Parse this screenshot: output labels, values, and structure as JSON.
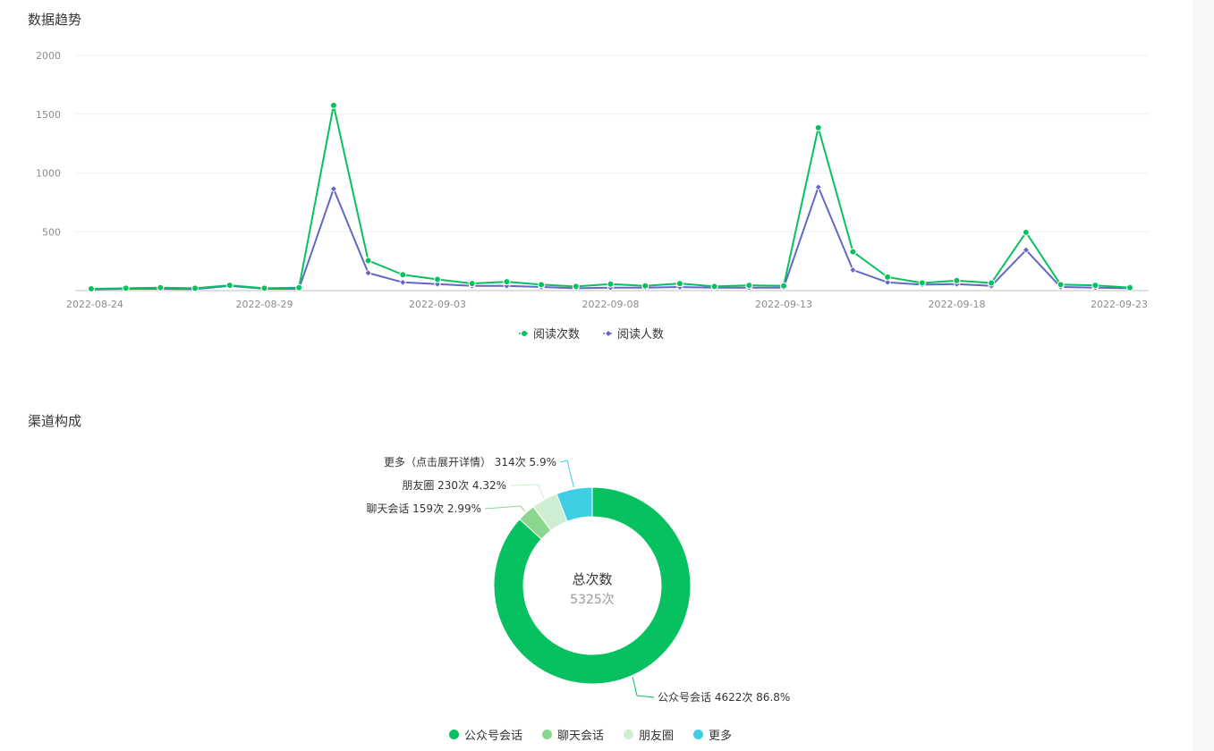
{
  "sections": {
    "trend_title": "数据趋势",
    "channel_title": "渠道构成"
  },
  "chart_data": [
    {
      "type": "line",
      "title": "数据趋势",
      "x": [
        "2022-08-24",
        "2022-08-25",
        "2022-08-26",
        "2022-08-27",
        "2022-08-28",
        "2022-08-29",
        "2022-08-30",
        "2022-08-31",
        "2022-09-01",
        "2022-09-02",
        "2022-09-03",
        "2022-09-04",
        "2022-09-05",
        "2022-09-06",
        "2022-09-07",
        "2022-09-08",
        "2022-09-09",
        "2022-09-10",
        "2022-09-11",
        "2022-09-12",
        "2022-09-13",
        "2022-09-14",
        "2022-09-15",
        "2022-09-16",
        "2022-09-17",
        "2022-09-18",
        "2022-09-19",
        "2022-09-20",
        "2022-09-21",
        "2022-09-22",
        "2022-09-23"
      ],
      "x_tick_labels": [
        "2022-08-24",
        "2022-08-29",
        "2022-09-03",
        "2022-09-08",
        "2022-09-13",
        "2022-09-18",
        "2022-09-23"
      ],
      "ylim": [
        0,
        2000
      ],
      "y_ticks": [
        500,
        1000,
        1500,
        2000
      ],
      "grid": true,
      "legend_position": "bottom",
      "series": [
        {
          "name": "阅读次数",
          "color": "#07c160",
          "marker": "circle",
          "values": [
            15,
            20,
            25,
            20,
            45,
            20,
            25,
            1575,
            255,
            135,
            95,
            60,
            75,
            50,
            35,
            55,
            40,
            60,
            35,
            45,
            40,
            1385,
            330,
            115,
            65,
            85,
            65,
            495,
            50,
            45,
            25
          ]
        },
        {
          "name": "阅读人数",
          "color": "#6467c6",
          "marker": "diamond",
          "values": [
            10,
            15,
            15,
            12,
            40,
            15,
            15,
            865,
            150,
            70,
            55,
            40,
            40,
            30,
            20,
            25,
            25,
            30,
            25,
            25,
            25,
            880,
            175,
            70,
            50,
            55,
            40,
            345,
            30,
            25,
            20
          ]
        }
      ]
    },
    {
      "type": "pie",
      "title": "渠道构成",
      "center_title": "总次数",
      "center_value": "5325次",
      "slices": [
        {
          "name": "公众号会话",
          "value": 4622,
          "label": "公众号会话 4622次 86.8%",
          "color": "#07c160"
        },
        {
          "name": "聊天会话",
          "value": 159,
          "label": "聊天会话 159次 2.99%",
          "color": "#8bd68f"
        },
        {
          "name": "朋友圈",
          "value": 230,
          "label": "朋友圈 230次 4.32%",
          "color": "#cdeed1"
        },
        {
          "name": "更多",
          "value": 314,
          "label": "更多（点击展开详情） 314次 5.9%",
          "color": "#3fcfe5"
        }
      ],
      "legend": [
        "公众号会话",
        "聊天会话",
        "朋友圈",
        "更多"
      ],
      "legend_position": "bottom"
    }
  ]
}
